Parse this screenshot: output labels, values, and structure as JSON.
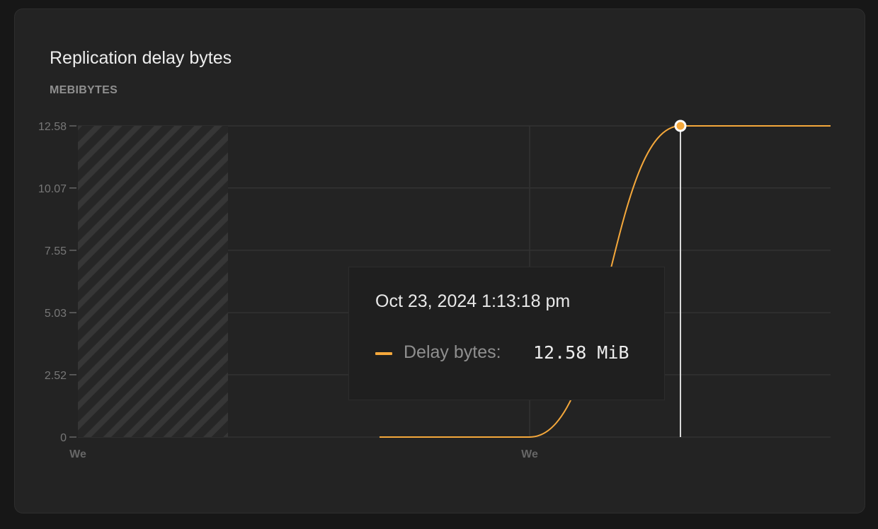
{
  "card": {
    "title": "Replication delay bytes",
    "unit_label": "MEBIBYTES"
  },
  "chart_data": {
    "type": "line",
    "title": "Replication delay bytes",
    "ylabel": "MEBIBYTES",
    "ylim": [
      0,
      12.58
    ],
    "y_ticks": [
      "0",
      "2.52",
      "5.03",
      "7.55",
      "10.07",
      "12.58"
    ],
    "y_tick_values": [
      0,
      2.52,
      5.03,
      7.55,
      10.07,
      12.58
    ],
    "x_ticks": [
      "We",
      "We"
    ],
    "grid": true,
    "no_data_region": "hatched",
    "series": [
      {
        "name": "Delay bytes",
        "color": "#f5a83b",
        "values": [
          0,
          0,
          12.58,
          12.58
        ]
      }
    ],
    "hover": {
      "timestamp": "Oct 23, 2024 1:13:18 pm",
      "series": "Delay bytes",
      "value": 12.58,
      "value_text": "12.58 MiB"
    }
  },
  "tooltip": {
    "date": "Oct 23, 2024 1:13:18 pm",
    "label": "Delay bytes:",
    "value": "12.58 MiB",
    "color": "#f5a83b"
  }
}
